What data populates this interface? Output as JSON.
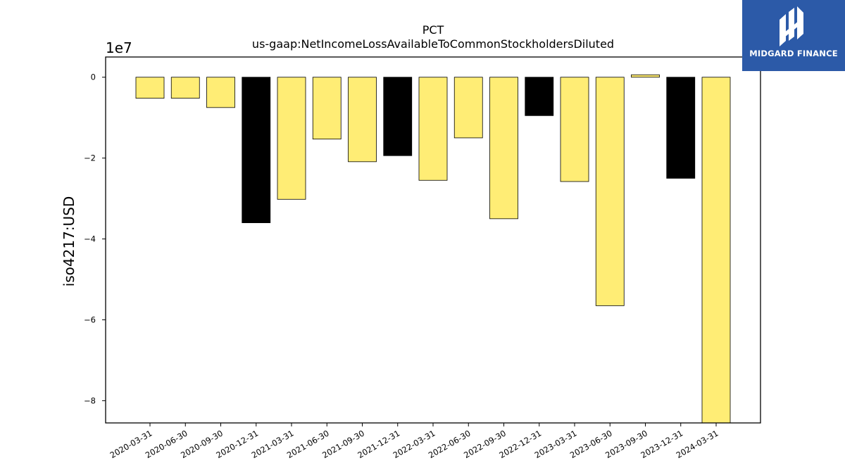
{
  "chart_data": {
    "type": "bar",
    "title": "PCT",
    "subtitle": "us-gaap:NetIncomeLossAvailableToCommonStockholdersDiluted",
    "ylabel": "iso4217:USD",
    "xlabel": "",
    "y_multiplier_label": "1e7",
    "ylim": [
      -8.55,
      0.5
    ],
    "y_ticks": [
      0,
      -2,
      -4,
      -6,
      -8
    ],
    "y_tick_labels": [
      "0",
      "−2",
      "−4",
      "−6",
      "−8"
    ],
    "categories": [
      "2020-03-31",
      "2020-06-30",
      "2020-09-30",
      "2020-12-31",
      "2021-03-31",
      "2021-06-30",
      "2021-09-30",
      "2021-12-31",
      "2022-03-31",
      "2022-06-30",
      "2022-09-30",
      "2022-12-31",
      "2023-03-31",
      "2023-06-30",
      "2023-09-30",
      "2023-12-31",
      "2024-03-31"
    ],
    "values": [
      -0.52,
      -0.52,
      -0.75,
      -3.6,
      -3.02,
      -1.53,
      -2.09,
      -1.94,
      -2.55,
      -1.5,
      -3.5,
      -0.95,
      -2.58,
      -5.65,
      0.06,
      -2.5,
      -8.55
    ],
    "bar_colors": [
      "#ffed75",
      "#ffed75",
      "#ffed75",
      "#000000",
      "#ffed75",
      "#ffed75",
      "#ffed75",
      "#000000",
      "#ffed75",
      "#ffed75",
      "#ffed75",
      "#000000",
      "#ffed75",
      "#ffed75",
      "#ffed75",
      "#000000",
      "#ffed75"
    ],
    "grid": false,
    "legend": "none"
  },
  "logo": {
    "text": "MIDGARD FINANCE"
  }
}
